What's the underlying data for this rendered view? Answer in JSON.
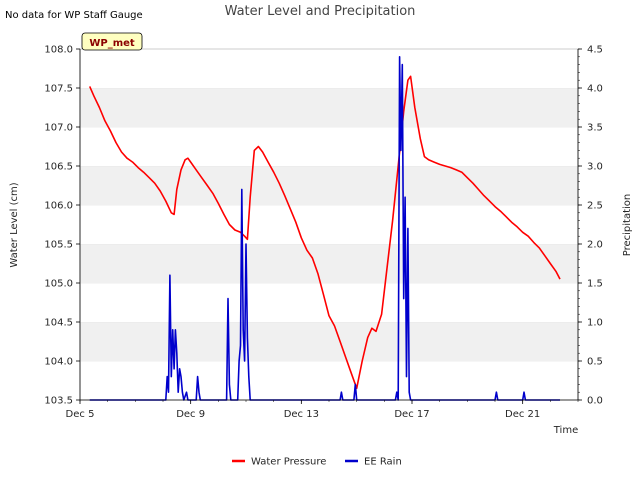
{
  "chart_data": {
    "type": "line",
    "title": "Water Level and Precipitation",
    "note": "No data for WP Staff Gauge",
    "badge": "WP_met",
    "xlabel": "Time",
    "ylabel_left": "Water Level (cm)",
    "ylabel_right": "Precipitation",
    "x_axis": {
      "unit": "day of December",
      "range": [
        5,
        23
      ],
      "ticks": [
        {
          "x": 5,
          "label": "Dec 5"
        },
        {
          "x": 9,
          "label": "Dec 9"
        },
        {
          "x": 13,
          "label": "Dec 13"
        },
        {
          "x": 17,
          "label": "Dec 17"
        },
        {
          "x": 21,
          "label": "Dec 21"
        }
      ]
    },
    "y_left": {
      "range": [
        103.5,
        108.0
      ],
      "ticks": [
        "103.5",
        "104.0",
        "104.5",
        "105.0",
        "105.5",
        "106.0",
        "106.5",
        "107.0",
        "107.5",
        "108.0"
      ]
    },
    "y_right": {
      "range": [
        0,
        4.5
      ],
      "ticks": [
        "0.0",
        "0.5",
        "1.0",
        "1.5",
        "2.0",
        "2.5",
        "3.0",
        "3.5",
        "4.0",
        "4.5"
      ]
    },
    "grid": "horizontal bands",
    "legend_position": "bottom-center",
    "series": [
      {
        "name": "Water Pressure",
        "axis": "left",
        "color": "#ff0000",
        "points": [
          [
            5.35,
            107.52
          ],
          [
            5.5,
            107.4
          ],
          [
            5.7,
            107.25
          ],
          [
            5.9,
            107.08
          ],
          [
            6.1,
            106.95
          ],
          [
            6.3,
            106.8
          ],
          [
            6.5,
            106.68
          ],
          [
            6.7,
            106.6
          ],
          [
            6.9,
            106.55
          ],
          [
            7.1,
            106.48
          ],
          [
            7.3,
            106.42
          ],
          [
            7.5,
            106.35
          ],
          [
            7.7,
            106.28
          ],
          [
            7.9,
            106.18
          ],
          [
            8.1,
            106.05
          ],
          [
            8.3,
            105.9
          ],
          [
            8.4,
            105.88
          ],
          [
            8.5,
            106.2
          ],
          [
            8.65,
            106.45
          ],
          [
            8.8,
            106.58
          ],
          [
            8.9,
            106.6
          ],
          [
            9.0,
            106.55
          ],
          [
            9.2,
            106.45
          ],
          [
            9.4,
            106.35
          ],
          [
            9.6,
            106.25
          ],
          [
            9.8,
            106.15
          ],
          [
            10.0,
            106.02
          ],
          [
            10.2,
            105.88
          ],
          [
            10.4,
            105.75
          ],
          [
            10.6,
            105.68
          ],
          [
            10.8,
            105.65
          ],
          [
            10.95,
            105.6
          ],
          [
            11.05,
            105.56
          ],
          [
            11.15,
            106.1
          ],
          [
            11.3,
            106.7
          ],
          [
            11.45,
            106.75
          ],
          [
            11.6,
            106.68
          ],
          [
            11.8,
            106.55
          ],
          [
            12.0,
            106.42
          ],
          [
            12.2,
            106.28
          ],
          [
            12.4,
            106.12
          ],
          [
            12.6,
            105.95
          ],
          [
            12.8,
            105.78
          ],
          [
            13.0,
            105.58
          ],
          [
            13.2,
            105.42
          ],
          [
            13.4,
            105.32
          ],
          [
            13.6,
            105.12
          ],
          [
            13.8,
            104.85
          ],
          [
            14.0,
            104.58
          ],
          [
            14.2,
            104.45
          ],
          [
            14.4,
            104.25
          ],
          [
            14.6,
            104.05
          ],
          [
            14.8,
            103.85
          ],
          [
            15.0,
            103.65
          ],
          [
            15.2,
            104.0
          ],
          [
            15.4,
            104.3
          ],
          [
            15.55,
            104.42
          ],
          [
            15.7,
            104.38
          ],
          [
            15.9,
            104.6
          ],
          [
            16.1,
            105.2
          ],
          [
            16.3,
            105.8
          ],
          [
            16.5,
            106.5
          ],
          [
            16.7,
            107.2
          ],
          [
            16.85,
            107.6
          ],
          [
            16.95,
            107.65
          ],
          [
            17.1,
            107.25
          ],
          [
            17.3,
            106.85
          ],
          [
            17.45,
            106.62
          ],
          [
            17.6,
            106.58
          ],
          [
            17.8,
            106.55
          ],
          [
            18.0,
            106.52
          ],
          [
            18.2,
            106.5
          ],
          [
            18.4,
            106.48
          ],
          [
            18.6,
            106.45
          ],
          [
            18.8,
            106.42
          ],
          [
            19.0,
            106.35
          ],
          [
            19.2,
            106.28
          ],
          [
            19.4,
            106.2
          ],
          [
            19.6,
            106.12
          ],
          [
            19.8,
            106.05
          ],
          [
            20.0,
            105.98
          ],
          [
            20.2,
            105.92
          ],
          [
            20.4,
            105.85
          ],
          [
            20.6,
            105.78
          ],
          [
            20.8,
            105.72
          ],
          [
            21.0,
            105.65
          ],
          [
            21.2,
            105.6
          ],
          [
            21.4,
            105.52
          ],
          [
            21.6,
            105.45
          ],
          [
            21.8,
            105.35
          ],
          [
            22.0,
            105.25
          ],
          [
            22.2,
            105.15
          ],
          [
            22.35,
            105.05
          ]
        ]
      },
      {
        "name": "EE Rain",
        "axis": "right",
        "color": "#0000cc",
        "points": [
          [
            5.35,
            0
          ],
          [
            8.1,
            0
          ],
          [
            8.15,
            0.3
          ],
          [
            8.2,
            0.1
          ],
          [
            8.25,
            1.6
          ],
          [
            8.3,
            0.3
          ],
          [
            8.35,
            0.9
          ],
          [
            8.4,
            0.4
          ],
          [
            8.45,
            0.9
          ],
          [
            8.5,
            0.6
          ],
          [
            8.55,
            0.1
          ],
          [
            8.6,
            0.4
          ],
          [
            8.65,
            0.3
          ],
          [
            8.7,
            0.1
          ],
          [
            8.75,
            0
          ],
          [
            8.85,
            0.1
          ],
          [
            8.9,
            0
          ],
          [
            9.2,
            0
          ],
          [
            9.25,
            0.3
          ],
          [
            9.3,
            0.1
          ],
          [
            9.35,
            0
          ],
          [
            10.3,
            0
          ],
          [
            10.35,
            1.3
          ],
          [
            10.4,
            0.2
          ],
          [
            10.45,
            0
          ],
          [
            10.7,
            0
          ],
          [
            10.75,
            0.5
          ],
          [
            10.8,
            0.7
          ],
          [
            10.85,
            2.7
          ],
          [
            10.9,
            0.9
          ],
          [
            10.95,
            0.5
          ],
          [
            11.0,
            2.0
          ],
          [
            11.05,
            0.8
          ],
          [
            11.1,
            0.3
          ],
          [
            11.15,
            0
          ],
          [
            11.2,
            0
          ],
          [
            14.4,
            0
          ],
          [
            14.45,
            0.1
          ],
          [
            14.5,
            0
          ],
          [
            14.9,
            0
          ],
          [
            14.95,
            0.2
          ],
          [
            15.0,
            0
          ],
          [
            16.4,
            0
          ],
          [
            16.45,
            0.1
          ],
          [
            16.5,
            0
          ],
          [
            16.55,
            4.4
          ],
          [
            16.6,
            3.2
          ],
          [
            16.65,
            4.3
          ],
          [
            16.7,
            1.3
          ],
          [
            16.75,
            2.6
          ],
          [
            16.8,
            0.3
          ],
          [
            16.85,
            2.2
          ],
          [
            16.9,
            0.1
          ],
          [
            16.95,
            0
          ],
          [
            20.0,
            0
          ],
          [
            20.05,
            0.1
          ],
          [
            20.1,
            0
          ],
          [
            21.0,
            0
          ],
          [
            21.05,
            0.1
          ],
          [
            21.1,
            0
          ],
          [
            22.35,
            0
          ]
        ]
      }
    ]
  }
}
